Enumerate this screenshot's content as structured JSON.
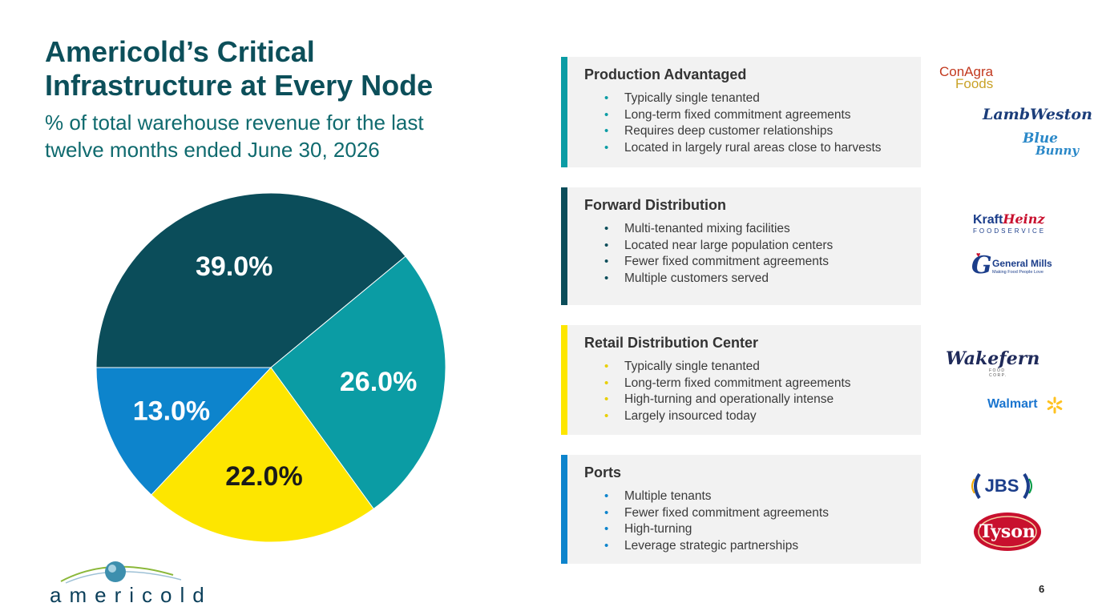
{
  "header": {
    "title_line1": "Americold’s Critical",
    "title_line2": "Infrastructure at Every Node",
    "subtitle_line1": "% of total warehouse revenue for the last",
    "subtitle_line2": "twelve months ended June 30, 2026"
  },
  "chart_data": {
    "type": "pie",
    "slices": [
      {
        "label": "39.0%",
        "value": 39.0,
        "color": "#0b4d5a",
        "text_color": "#ffffff",
        "segment": "Forward Distribution"
      },
      {
        "label": "26.0%",
        "value": 26.0,
        "color": "#0b9ca4",
        "text_color": "#ffffff",
        "segment": "Production Advantaged"
      },
      {
        "label": "22.0%",
        "value": 22.0,
        "color": "#fde600",
        "text_color": "#1a1a1a",
        "segment": "Retail Distribution Center"
      },
      {
        "label": "13.0%",
        "value": 13.0,
        "color": "#0d84cc",
        "text_color": "#ffffff",
        "segment": "Ports"
      }
    ]
  },
  "segments": [
    {
      "title": "Production Advantaged",
      "color": "#0b9ca4",
      "bullets": [
        "Typically single tenanted",
        "Long-term fixed commitment agreements",
        "Requires deep customer relationships",
        "Located in largely rural areas close to harvests"
      ]
    },
    {
      "title": "Forward Distribution",
      "color": "#0b4d5a",
      "bullets": [
        "Multi-tenanted mixing facilities",
        "Located near large population centers",
        "Fewer fixed commitment agreements",
        "Multiple customers served"
      ]
    },
    {
      "title": "Retail Distribution Center",
      "color": "#fde600",
      "bullets": [
        "Typically single tenanted",
        "Long-term fixed commitment agreements",
        "High-turning and operationally intense",
        "Largely insourced today"
      ]
    },
    {
      "title": "Ports",
      "color": "#0d84cc",
      "bullets": [
        "Multiple tenants",
        "Fewer fixed commitment agreements",
        "High-turning",
        "Leverage strategic partnerships"
      ]
    }
  ],
  "logos": {
    "conagra_line1": "ConAgra",
    "conagra_line2": "Foods",
    "lambweston": "LambWeston",
    "bluebunny_line1": "Blue",
    "bluebunny_line2": "Bunny",
    "kraft": "Kraft",
    "heinz": "Heinz",
    "kraft_sub": "FOODSERVICE",
    "generalmills": "General Mills",
    "generalmills_tag": "Making Food People Love",
    "generalmills_g": "G",
    "wakefern": "Wakefern",
    "wakefern_sub": "FOOD CORP.",
    "walmart": "Walmart",
    "jbs": "JBS",
    "tyson": "Tyson",
    "americold": "americold"
  },
  "footer": {
    "page_number": "6"
  }
}
